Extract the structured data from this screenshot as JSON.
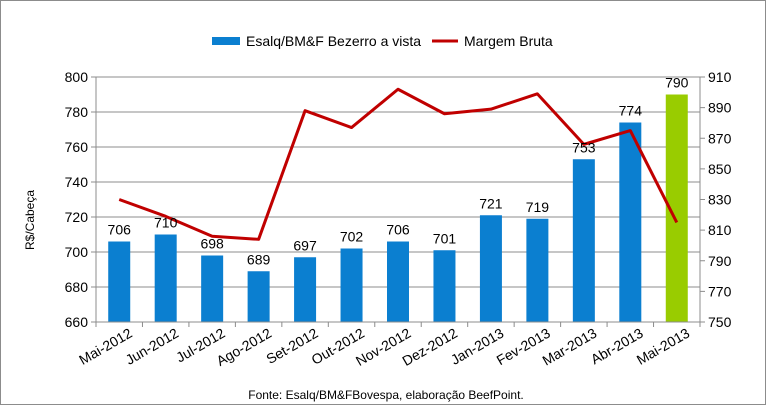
{
  "chart_data": {
    "type": "bar",
    "categories": [
      "Mai-2012",
      "Jun-2012",
      "Jul-2012",
      "Ago-2012",
      "Set-2012",
      "Out-2012",
      "Nov-2012",
      "Dez-2012",
      "Jan-2013",
      "Fev-2013",
      "Mar-2013",
      "Abr-2013",
      "Mai-2013"
    ],
    "series": [
      {
        "name": "Esalq/BM&F Bezerro a vista",
        "type": "bar",
        "axis": "left",
        "values": [
          706,
          710,
          698,
          689,
          697,
          702,
          706,
          701,
          721,
          719,
          753,
          774,
          790
        ],
        "color": "#0b7fd0",
        "highlight_color": "#99cc00",
        "highlight_index": 12
      },
      {
        "name": "Margem Bruta",
        "type": "line",
        "axis": "right",
        "values": [
          830,
          819,
          806,
          804,
          888,
          877,
          902,
          886,
          889,
          899,
          866,
          875,
          815
        ],
        "color": "#c00000"
      }
    ],
    "ylabel": "R$/Cabeça",
    "ylim": [
      660,
      800
    ],
    "yticks": [
      660,
      680,
      700,
      720,
      740,
      760,
      780,
      800
    ],
    "y2lim": [
      750,
      910
    ],
    "y2ticks": [
      750,
      770,
      790,
      810,
      830,
      850,
      870,
      890,
      910
    ],
    "grid": true,
    "legend_position": "top",
    "source_note": "Fonte: Esalq/BM&FBovespa, elaboração BeefPoint."
  }
}
